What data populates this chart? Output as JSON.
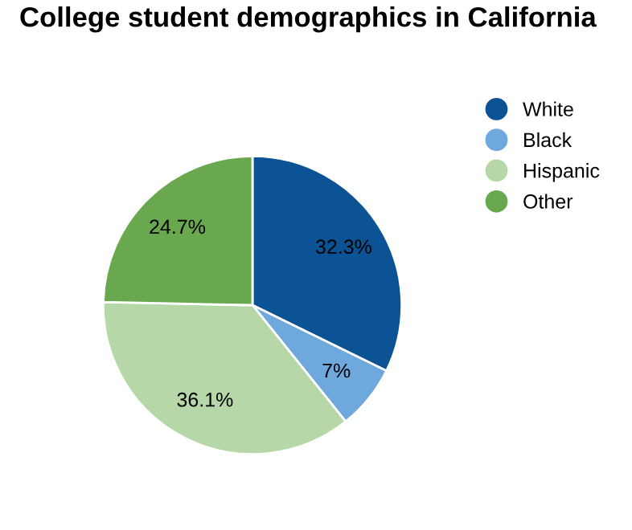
{
  "chart_data": {
    "type": "pie",
    "title": "College student demographics in California",
    "categories": [
      "White",
      "Black",
      "Hispanic",
      "Other"
    ],
    "values": [
      32.3,
      7,
      36.1,
      24.7
    ],
    "value_labels": [
      "32.3%",
      "7%",
      "36.1%",
      "24.7%"
    ],
    "colors": [
      "#0b5394",
      "#6fa8dc",
      "#b6d7a8",
      "#6aa84f"
    ],
    "legend": "top right"
  }
}
